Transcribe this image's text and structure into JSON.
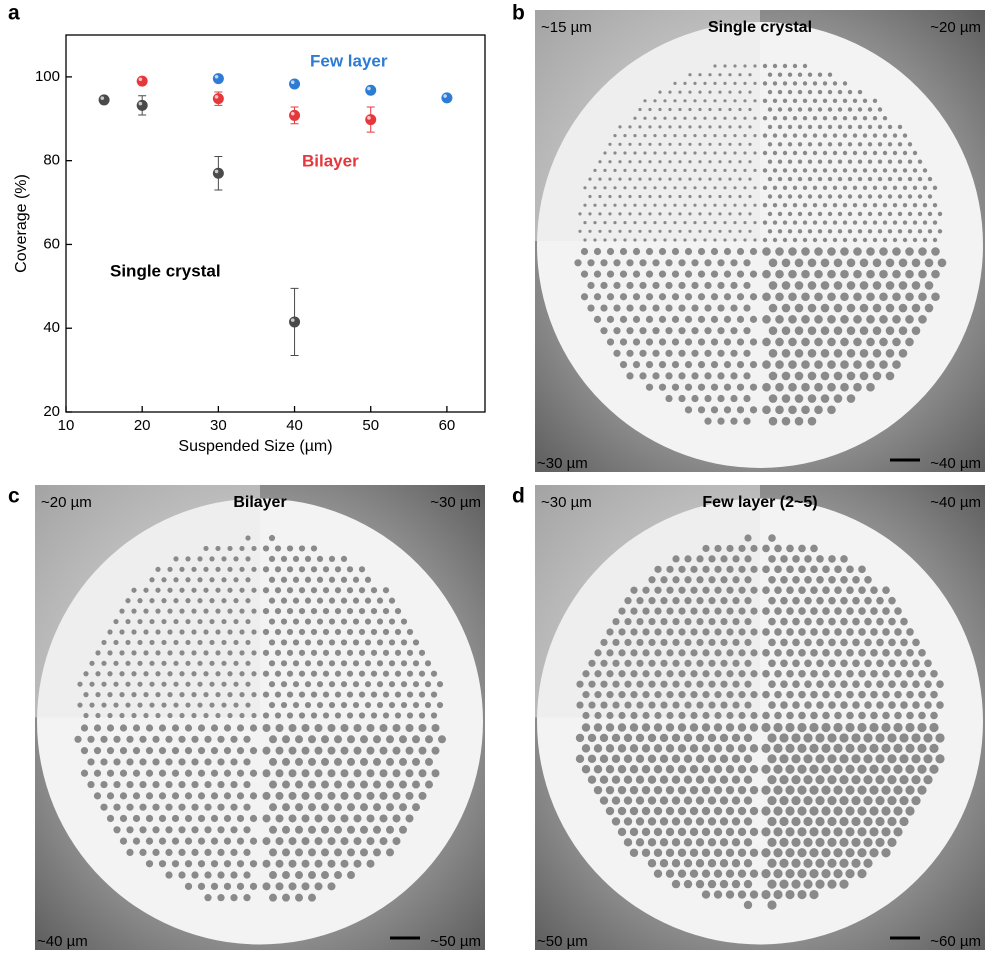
{
  "chart_data": {
    "type": "scatter",
    "x_label": "Suspended Size (µm)",
    "y_label": "Coverage (%)",
    "xlim": [
      10,
      65
    ],
    "ylim": [
      20,
      110
    ],
    "xticks": [
      10,
      20,
      30,
      40,
      50,
      60
    ],
    "yticks": [
      20,
      40,
      60,
      80,
      100
    ],
    "series": [
      {
        "name": "Single crystal",
        "color": "#4a4a4a",
        "x": [
          15,
          20,
          30,
          40
        ],
        "values": [
          94.5,
          93.2,
          77,
          41.5
        ],
        "errors": [
          0.8,
          2.3,
          4,
          8
        ]
      },
      {
        "name": "Bilayer",
        "color": "#e5383d",
        "x": [
          20,
          30,
          40,
          50
        ],
        "values": [
          99,
          94.8,
          90.8,
          89.8
        ],
        "errors": [
          0.5,
          1.6,
          2,
          3
        ]
      },
      {
        "name": "Few layer",
        "color": "#2d7bd4",
        "x": [
          30,
          40,
          50,
          60
        ],
        "values": [
          99.6,
          98.3,
          96.8,
          95
        ],
        "errors": [
          0.4,
          0.5,
          0.6,
          0.6
        ]
      }
    ]
  },
  "panel_labels": [
    "a",
    "b",
    "c",
    "d"
  ],
  "images": [
    {
      "title": "Single crystal",
      "corners": [
        "~15 µm",
        "~20 µm",
        "~30 µm",
        "~40 µm"
      ]
    },
    {
      "title": "Bilayer",
      "corners": [
        "~20 µm",
        "~30 µm",
        "~40 µm",
        "~50 µm"
      ]
    },
    {
      "title": "Few layer (2~5)",
      "corners": [
        "~30 µm",
        "~40 µm",
        "~50 µm",
        "~60 µm"
      ]
    }
  ]
}
